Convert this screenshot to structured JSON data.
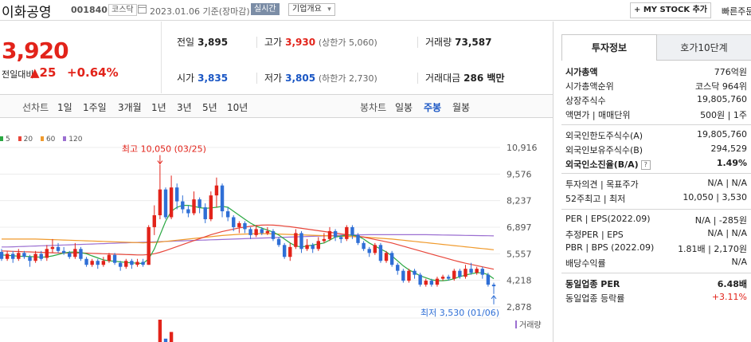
{
  "header": {
    "title": "이화공영",
    "code": "001840",
    "market": "코스닥",
    "date": "2023.01.06",
    "date_note": "기준(장마감)",
    "realtime": "실시간",
    "overview": "기업개요",
    "mystock": "MY STOCK 추가",
    "quick": "빠른주문"
  },
  "price": {
    "current": "3,920",
    "change_label": "전일대비",
    "change": "25",
    "pct": "+0.64%",
    "up_color": "#e2231a"
  },
  "stats": {
    "prev_k": "전일",
    "prev_v": "3,895",
    "high_k": "고가",
    "high_v": "3,930",
    "high_sub": "(상한가 5,060)",
    "volume_k": "거래량",
    "volume_v": "73,587",
    "open_k": "시가",
    "open_v": "3,835",
    "low_k": "저가",
    "low_v": "3,805",
    "low_sub": "(하한가 2,730)",
    "amount_k": "거래대금",
    "amount_v": "286 백만"
  },
  "periods": {
    "line": "선차트",
    "items": [
      "1일",
      "1주일",
      "3개월",
      "1년",
      "3년",
      "5년",
      "10년"
    ],
    "candle": "봉차트",
    "candle_items": [
      "일봉",
      "주봉",
      "월봉"
    ],
    "selected_candle": "주봉"
  },
  "chart_data": {
    "type": "candlestick",
    "legend": [
      {
        "name": "5",
        "color": "#2aa842"
      },
      {
        "name": "20",
        "color": "#e8463a"
      },
      {
        "name": "60",
        "color": "#f09a2c"
      },
      {
        "name": "120",
        "color": "#9b6fd1"
      }
    ],
    "y_ticks": [
      "10,916",
      "9,576",
      "8,237",
      "6,897",
      "5,557",
      "4,218",
      "2,878"
    ],
    "ylim": [
      2878,
      10916
    ],
    "high_note": "최고 10,050 (03/25)",
    "low_note": "최저 3,530 (01/06)",
    "volume_label": "거래량",
    "candles": [
      [
        5650,
        5300,
        5800,
        5200
      ],
      [
        5300,
        5550,
        5700,
        5200
      ],
      [
        5550,
        5300,
        5700,
        5100
      ],
      [
        5300,
        5600,
        5800,
        5200
      ],
      [
        5600,
        5400,
        5700,
        5300
      ],
      [
        5400,
        5200,
        5500,
        4900
      ],
      [
        5200,
        5550,
        5700,
        5100
      ],
      [
        5550,
        5300,
        5700,
        5200
      ],
      [
        5350,
        5800,
        6000,
        5200
      ],
      [
        5800,
        5900,
        6300,
        5600
      ],
      [
        5900,
        5700,
        6100,
        5600
      ],
      [
        5700,
        5600,
        5900,
        5500
      ],
      [
        5600,
        5400,
        5700,
        5300
      ],
      [
        5400,
        5800,
        6100,
        5300
      ],
      [
        5800,
        5300,
        5900,
        5200
      ],
      [
        5300,
        5000,
        5400,
        4900
      ],
      [
        5000,
        5200,
        5300,
        4900
      ],
      [
        5200,
        5000,
        5300,
        4800
      ],
      [
        5000,
        5200,
        5400,
        4900
      ],
      [
        5200,
        5500,
        5600,
        5100
      ],
      [
        5500,
        5100,
        5600,
        5000
      ],
      [
        5100,
        4900,
        5200,
        4700
      ],
      [
        4900,
        5200,
        5300,
        4800
      ],
      [
        5200,
        5000,
        5300,
        4800
      ],
      [
        5000,
        5150,
        5300,
        4900
      ],
      [
        5150,
        5000,
        5300,
        4900
      ],
      [
        5000,
        6900,
        7000,
        5000
      ],
      [
        6900,
        7500,
        8000,
        6500
      ],
      [
        7500,
        8800,
        10050,
        7300
      ],
      [
        8800,
        7400,
        8900,
        7300
      ],
      [
        7400,
        8900,
        9500,
        7300
      ],
      [
        8900,
        8200,
        9100,
        7800
      ],
      [
        8200,
        7800,
        8500,
        7600
      ],
      [
        7800,
        7600,
        8000,
        7400
      ],
      [
        7600,
        8300,
        8700,
        7500
      ],
      [
        8300,
        7900,
        8400,
        7600
      ],
      [
        7900,
        7300,
        8100,
        7100
      ],
      [
        7300,
        8500,
        8700,
        7200
      ],
      [
        8500,
        9000,
        9400,
        7900
      ],
      [
        9000,
        7700,
        9100,
        7400
      ],
      [
        7700,
        7400,
        7900,
        7200
      ],
      [
        7400,
        6900,
        7500,
        6700
      ],
      [
        6900,
        7100,
        7200,
        6600
      ],
      [
        7100,
        6800,
        7200,
        6600
      ],
      [
        6800,
        6500,
        6900,
        6300
      ],
      [
        6500,
        6800,
        7000,
        6400
      ],
      [
        6800,
        6600,
        6900,
        6500
      ],
      [
        6600,
        6700,
        6900,
        6500
      ],
      [
        6700,
        6300,
        6800,
        6200
      ],
      [
        6300,
        6000,
        6400,
        5900
      ],
      [
        6000,
        5400,
        6100,
        5300
      ],
      [
        5400,
        5900,
        6100,
        5200
      ],
      [
        5900,
        6600,
        6800,
        5800
      ],
      [
        6600,
        5800,
        6700,
        5600
      ],
      [
        5800,
        6000,
        6300,
        5700
      ],
      [
        6000,
        5800,
        6100,
        5600
      ],
      [
        5800,
        6200,
        6400,
        5700
      ],
      [
        6200,
        6300,
        6600,
        6100
      ],
      [
        6300,
        6700,
        6900,
        6200
      ],
      [
        6700,
        6400,
        6800,
        6200
      ],
      [
        6400,
        6300,
        6500,
        6100
      ],
      [
        6300,
        6900,
        7000,
        6200
      ],
      [
        6900,
        6500,
        7000,
        6300
      ],
      [
        6500,
        6100,
        6600,
        6000
      ],
      [
        6100,
        5800,
        6200,
        5700
      ],
      [
        5800,
        5600,
        5900,
        5400
      ],
      [
        5600,
        6000,
        6100,
        5500
      ],
      [
        6000,
        5200,
        6100,
        5100
      ],
      [
        5200,
        5600,
        5700,
        5100
      ],
      [
        5600,
        5000,
        5700,
        4900
      ],
      [
        5000,
        4700,
        5100,
        4500
      ],
      [
        4700,
        4200,
        4800,
        4100
      ],
      [
        4200,
        4700,
        4800,
        4100
      ],
      [
        4700,
        4500,
        4800,
        4300
      ],
      [
        4500,
        4000,
        4600,
        3900
      ],
      [
        4000,
        4200,
        4300,
        3900
      ],
      [
        4200,
        4000,
        4300,
        3900
      ],
      [
        4000,
        4300,
        4400,
        3900
      ],
      [
        4300,
        4400,
        4500,
        4200
      ],
      [
        4400,
        4300,
        4500,
        4200
      ],
      [
        4300,
        4700,
        4800,
        4200
      ],
      [
        4700,
        4400,
        4800,
        4300
      ],
      [
        4400,
        4800,
        5000,
        4300
      ],
      [
        4800,
        4600,
        5100,
        4500
      ],
      [
        4600,
        4800,
        4900,
        4500
      ],
      [
        4800,
        4500,
        4900,
        4300
      ],
      [
        4500,
        4000,
        4600,
        3900
      ],
      [
        4000,
        3920,
        4100,
        3530
      ]
    ],
    "ma5": [
      5500,
      5480,
      5460,
      5440,
      5430,
      5420,
      5400,
      5380,
      5400,
      5450,
      5520,
      5600,
      5640,
      5650,
      5620,
      5560,
      5450,
      5350,
      5250,
      5200,
      5180,
      5150,
      5120,
      5100,
      5080,
      5070,
      5300,
      5800,
      6500,
      7200,
      7700,
      7900,
      8000,
      8000,
      7950,
      7880,
      7850,
      7870,
      7900,
      7950,
      7900,
      7700,
      7500,
      7300,
      7100,
      6950,
      6850,
      6750,
      6650,
      6500,
      6300,
      6100,
      5950,
      5900,
      5950,
      6000,
      6050,
      6100,
      6250,
      6400,
      6450,
      6500,
      6500,
      6450,
      6300,
      6100,
      5950,
      5800,
      5650,
      5450,
      5200,
      4950,
      4750,
      4600,
      4450,
      4350,
      4250,
      4200,
      4200,
      4230,
      4300,
      4400,
      4480,
      4550,
      4600,
      4600,
      4500,
      4300
    ],
    "ma20": [
      5700,
      5690,
      5680,
      5670,
      5660,
      5650,
      5640,
      5630,
      5620,
      5610,
      5600,
      5600,
      5600,
      5600,
      5600,
      5590,
      5580,
      5570,
      5560,
      5550,
      5540,
      5530,
      5520,
      5510,
      5500,
      5500,
      5520,
      5560,
      5630,
      5720,
      5820,
      5920,
      6020,
      6120,
      6220,
      6320,
      6420,
      6520,
      6600,
      6680,
      6740,
      6800,
      6860,
      6900,
      6940,
      6980,
      7000,
      7010,
      7000,
      6980,
      6950,
      6920,
      6880,
      6840,
      6800,
      6760,
      6720,
      6680,
      6640,
      6600,
      6560,
      6520,
      6480,
      6440,
      6400,
      6340,
      6280,
      6220,
      6160,
      6100,
      6020,
      5940,
      5860,
      5780,
      5700,
      5620,
      5540,
      5460,
      5380,
      5300,
      5220,
      5150,
      5080,
      5020,
      4960,
      4900,
      4840,
      4780
    ],
    "ma60": [
      6300,
      6300,
      6300,
      6300,
      6300,
      6300,
      6300,
      6290,
      6280,
      6270,
      6260,
      6250,
      6240,
      6230,
      6220,
      6210,
      6200,
      6190,
      6180,
      6170,
      6160,
      6150,
      6140,
      6130,
      6120,
      6110,
      6120,
      6130,
      6150,
      6180,
      6210,
      6240,
      6270,
      6300,
      6330,
      6360,
      6390,
      6420,
      6450,
      6480,
      6500,
      6520,
      6540,
      6550,
      6560,
      6570,
      6570,
      6570,
      6560,
      6550,
      6540,
      6530,
      6520,
      6510,
      6500,
      6490,
      6480,
      6470,
      6460,
      6450,
      6440,
      6430,
      6420,
      6410,
      6400,
      6380,
      6360,
      6340,
      6320,
      6300,
      6270,
      6240,
      6210,
      6180,
      6150,
      6120,
      6090,
      6060,
      6030,
      6000,
      5970,
      5940,
      5910,
      5880,
      5850,
      5820,
      5790,
      5760
    ],
    "ma120": [
      5900,
      5900,
      5910,
      5920,
      5930,
      5940,
      5950,
      5960,
      5970,
      5980,
      5990,
      6000,
      6010,
      6020,
      6030,
      6040,
      6050,
      6060,
      6070,
      6080,
      6090,
      6100,
      6110,
      6120,
      6130,
      6140,
      6150,
      6160,
      6170,
      6180,
      6190,
      6200,
      6210,
      6220,
      6230,
      6240,
      6250,
      6260,
      6270,
      6280,
      6290,
      6300,
      6310,
      6320,
      6330,
      6340,
      6350,
      6360,
      6370,
      6380,
      6390,
      6400,
      6410,
      6420,
      6430,
      6440,
      6450,
      6460,
      6470,
      6480,
      6490,
      6500,
      6505,
      6510,
      6515,
      6520,
      6520,
      6520,
      6520,
      6520,
      6520,
      6520,
      6520,
      6520,
      6520,
      6520,
      6515,
      6510,
      6505,
      6500,
      6495,
      6490,
      6485,
      6480,
      6475,
      6470,
      6465,
      6460
    ],
    "volume": [
      0,
      0,
      0,
      0,
      0,
      0,
      0,
      0,
      0,
      0,
      0,
      0,
      0,
      0,
      0,
      0,
      0,
      0,
      0,
      0,
      0,
      0,
      0,
      0,
      0,
      0,
      0,
      0,
      1,
      0.15,
      0.45,
      0,
      0,
      0,
      0,
      0,
      0,
      0,
      0,
      0,
      0,
      0,
      0,
      0,
      0,
      0,
      0,
      0,
      0,
      0,
      0,
      0,
      0,
      0,
      0,
      0,
      0,
      0,
      0,
      0,
      0,
      0,
      0,
      0,
      0,
      0,
      0,
      0,
      0,
      0,
      0,
      0,
      0,
      0,
      0,
      0,
      0,
      0,
      0,
      0,
      0,
      0,
      0,
      0,
      0,
      0,
      0,
      0
    ]
  },
  "right_panel": {
    "tabs": [
      "투자정보",
      "호가10단계"
    ],
    "rows": [
      {
        "k": "시가총액",
        "v": "776억원",
        "kb": true
      },
      {
        "k": "시가총액순위",
        "v": "코스닥 964위"
      },
      {
        "k": "상장주식수",
        "v": "19,805,760"
      },
      {
        "k": "액면가 | 매매단위",
        "v": "500원 | 1주"
      },
      {
        "k": "외국인한도주식수(A)",
        "v": "19,805,760"
      },
      {
        "k": "외국인보유주식수(B)",
        "v": "294,529"
      },
      {
        "k": "외국인소진율(B/A)",
        "v": "1.49%",
        "kb": true,
        "vb": true
      },
      {
        "k": "투자의견 | 목표주가",
        "v": "N/A | N/A"
      },
      {
        "k": "52주최고 | 최저",
        "v": "10,050 | 3,530"
      },
      {
        "k": "PER | EPS(2022.09)",
        "v": "N/A | -285원"
      },
      {
        "k": "추정PER | EPS",
        "v": "N/A | N/A"
      },
      {
        "k": "PBR | BPS (2022.09)",
        "v": "1.81배 | 2,170원"
      },
      {
        "k": "배당수익률",
        "v": "N/A"
      },
      {
        "k": "동일업종 PER",
        "v": "6.48배",
        "kb": true,
        "vb": true
      },
      {
        "k": "동일업종 등락률",
        "v": "+3.11%",
        "red": true
      }
    ]
  }
}
